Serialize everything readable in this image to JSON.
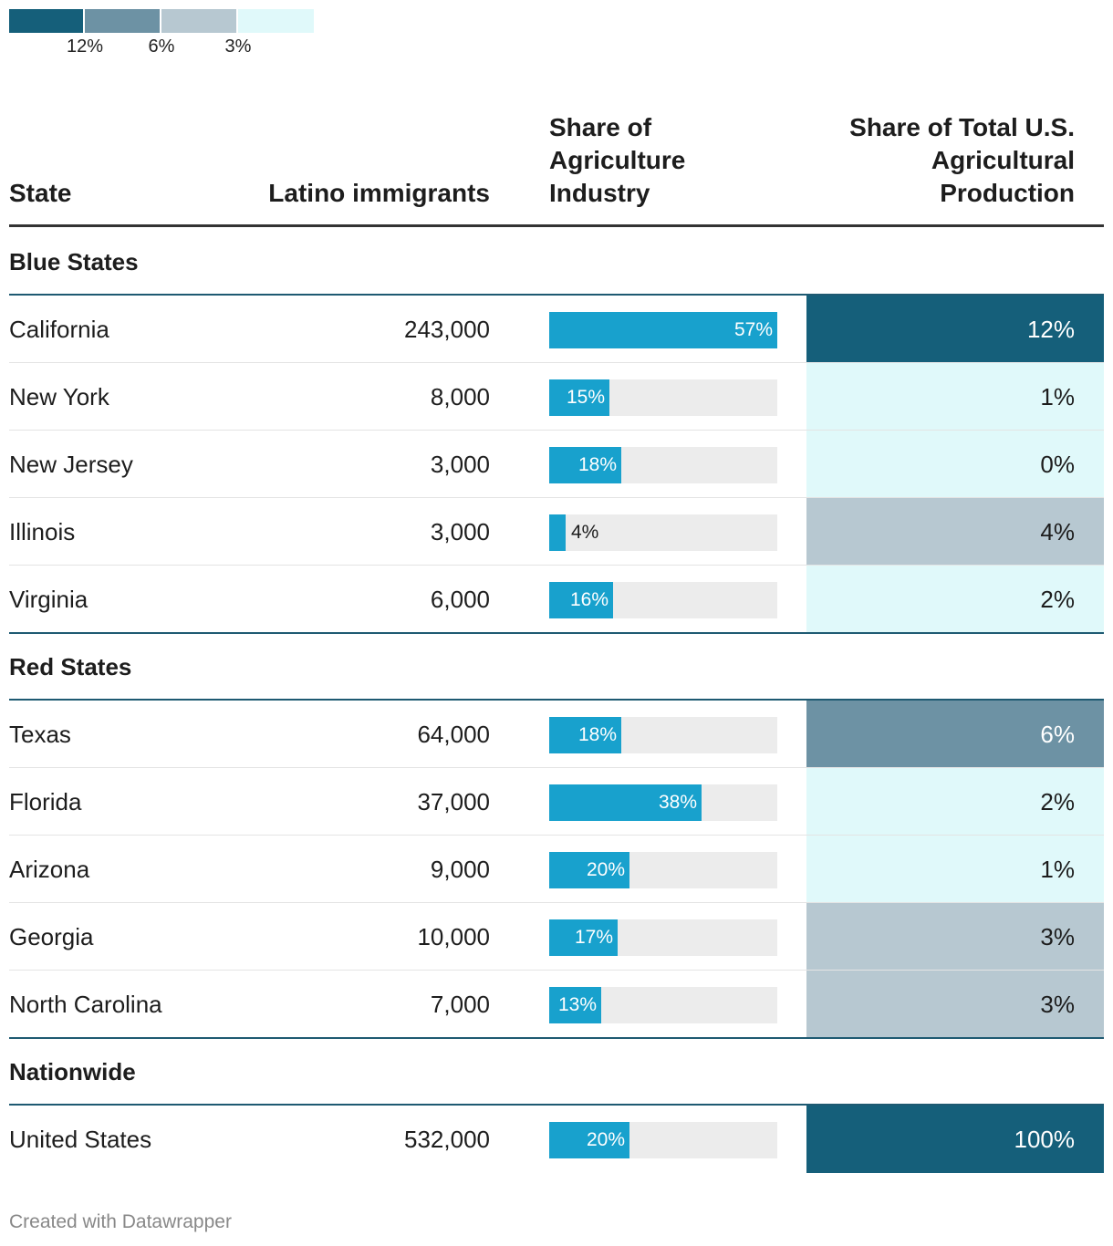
{
  "legend": {
    "colors": [
      "#155f7a",
      "#6d92a4",
      "#b7c8d1",
      "#e0f9fa"
    ],
    "ticks": [
      "12%",
      "6%",
      "3%"
    ]
  },
  "header": {
    "state": "State",
    "latino": "Latino immigrants",
    "share_industry": [
      "Share of",
      "Agriculture",
      "Industry"
    ],
    "share_total": [
      "Share of Total U.S.",
      "Agricultural",
      "Production"
    ]
  },
  "chart_data": {
    "type": "table",
    "columns": [
      "State",
      "Latino immigrants",
      "Share of Agriculture Industry",
      "Share of Total U.S. Agricultural Production"
    ],
    "groups": [
      {
        "title": "Blue States",
        "rows": [
          {
            "state": "California",
            "latino": "243,000",
            "share_industry": 57,
            "share_industry_label": "57%",
            "share_total": 12,
            "share_total_label": "12%"
          },
          {
            "state": "New York",
            "latino": "8,000",
            "share_industry": 15,
            "share_industry_label": "15%",
            "share_total": 1,
            "share_total_label": "1%"
          },
          {
            "state": "New Jersey",
            "latino": "3,000",
            "share_industry": 18,
            "share_industry_label": "18%",
            "share_total": 0,
            "share_total_label": "0%"
          },
          {
            "state": "Illinois",
            "latino": "3,000",
            "share_industry": 4,
            "share_industry_label": "4%",
            "share_total": 4,
            "share_total_label": "4%"
          },
          {
            "state": "Virginia",
            "latino": "6,000",
            "share_industry": 16,
            "share_industry_label": "16%",
            "share_total": 2,
            "share_total_label": "2%"
          }
        ]
      },
      {
        "title": "Red States",
        "rows": [
          {
            "state": "Texas",
            "latino": "64,000",
            "share_industry": 18,
            "share_industry_label": "18%",
            "share_total": 6,
            "share_total_label": "6%"
          },
          {
            "state": "Florida",
            "latino": "37,000",
            "share_industry": 38,
            "share_industry_label": "38%",
            "share_total": 2,
            "share_total_label": "2%"
          },
          {
            "state": "Arizona",
            "latino": "9,000",
            "share_industry": 20,
            "share_industry_label": "20%",
            "share_total": 1,
            "share_total_label": "1%"
          },
          {
            "state": "Georgia",
            "latino": "10,000",
            "share_industry": 17,
            "share_industry_label": "17%",
            "share_total": 3,
            "share_total_label": "3%"
          },
          {
            "state": "North Carolina",
            "latino": "7,000",
            "share_industry": 13,
            "share_industry_label": "13%",
            "share_total": 3,
            "share_total_label": "3%"
          }
        ]
      },
      {
        "title": "Nationwide",
        "rows": [
          {
            "state": "United States",
            "latino": "532,000",
            "share_industry": 20,
            "share_industry_label": "20%",
            "share_total": 100,
            "share_total_label": "100%"
          }
        ]
      }
    ],
    "bar_max": 57
  },
  "footer": "Created with Datawrapper"
}
